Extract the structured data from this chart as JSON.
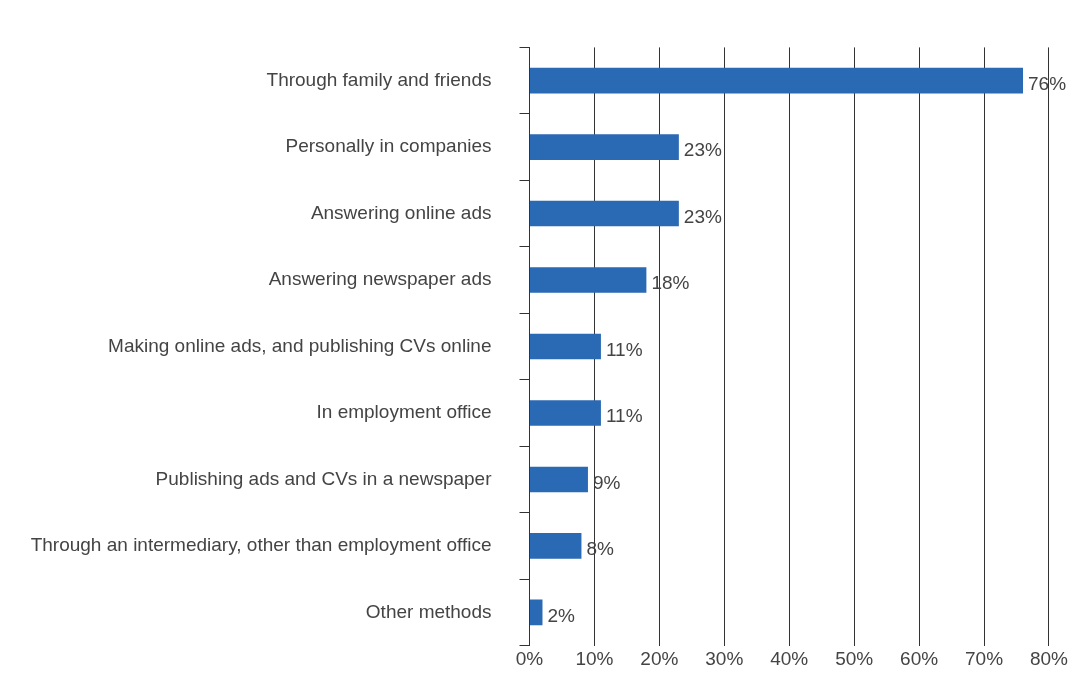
{
  "chart_data": {
    "type": "bar",
    "orientation": "horizontal",
    "categories": [
      "Through family and friends",
      "Personally in companies",
      "Answering online ads",
      "Answering newspaper ads",
      "Making online ads, and publishing CVs online",
      "In employment office",
      "Publishing ads and CVs in a newspaper",
      "Through an intermediary, other than employment office",
      "Other methods"
    ],
    "values": [
      76,
      23,
      23,
      18,
      11,
      11,
      9,
      8,
      2
    ],
    "value_labels": [
      "76%",
      "23%",
      "23%",
      "18%",
      "11%",
      "11%",
      "9%",
      "8%",
      "2%"
    ],
    "color": "#2a69b4",
    "xlim": [
      0,
      80
    ],
    "xticks": [
      {
        "value": 0,
        "label": "0%"
      },
      {
        "value": 10,
        "label": "10%"
      },
      {
        "value": 20,
        "label": "20%"
      },
      {
        "value": 30,
        "label": "30%"
      },
      {
        "value": 40,
        "label": "40%"
      },
      {
        "value": 50,
        "label": "50%"
      },
      {
        "value": 60,
        "label": "60%"
      },
      {
        "value": 70,
        "label": "70%"
      },
      {
        "value": 80,
        "label": "80%"
      }
    ],
    "grid": "x",
    "legend": false
  }
}
